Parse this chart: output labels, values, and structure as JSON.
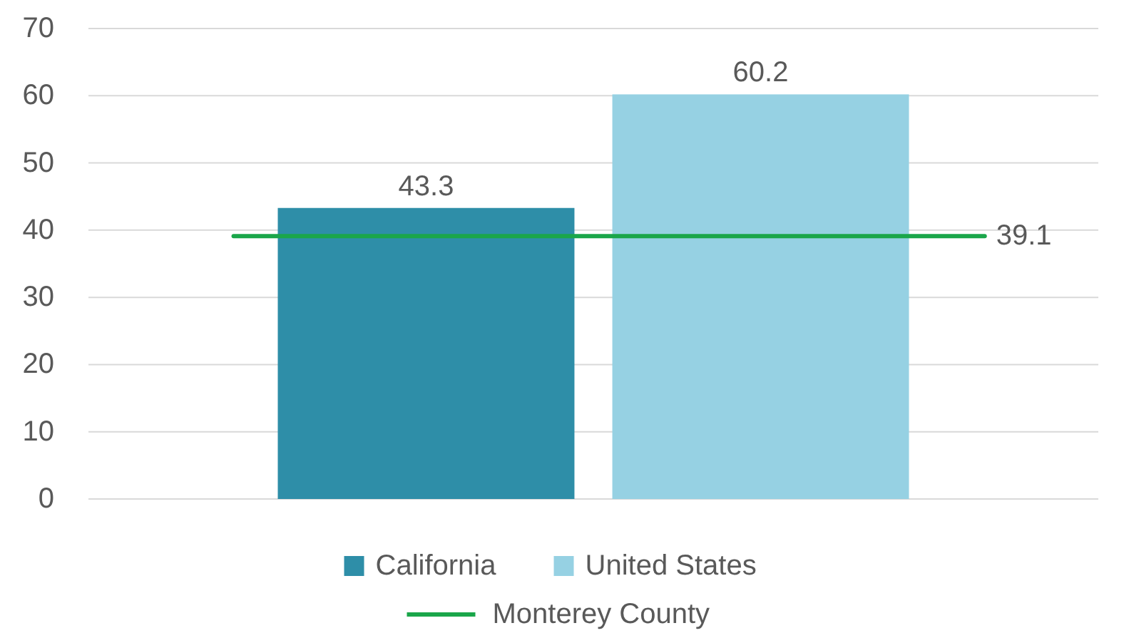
{
  "chart_data": {
    "type": "bar",
    "categories": [
      null
    ],
    "series": [
      {
        "name": "California",
        "color": "#2e8ea8",
        "values": [
          43.3
        ]
      },
      {
        "name": "United States",
        "color": "#96d1e3",
        "values": [
          60.2
        ]
      }
    ],
    "ylim": [
      0,
      70
    ],
    "yticks": [
      0,
      10,
      20,
      30,
      40,
      50,
      60,
      70
    ],
    "grid": "y",
    "data_labels": true,
    "legend": "bottom",
    "ref_lines": [
      {
        "axis": "y",
        "value": 39.1,
        "label": "Monterey County",
        "color": "#1aa64a"
      }
    ],
    "annotations": [
      "39.1"
    ]
  }
}
